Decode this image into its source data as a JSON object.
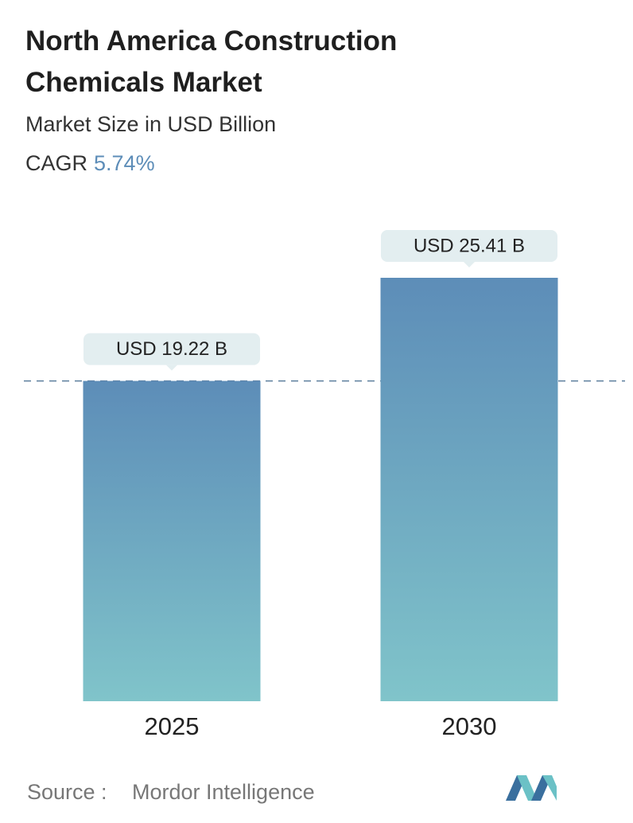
{
  "chart_data": {
    "type": "bar",
    "title": "North America Construction Chemicals Market",
    "subtitle": "Market Size in USD Billion",
    "cagr_label": "CAGR",
    "cagr": "5.74%",
    "categories": [
      "2025",
      "2030"
    ],
    "values": [
      19.22,
      25.41
    ],
    "value_labels": [
      "USD 19.22 B",
      "USD 25.41 B"
    ],
    "colors": [
      "#5d8db8",
      "#80c4ca"
    ],
    "source_label": "Source :",
    "source": "Mordor Intelligence"
  }
}
